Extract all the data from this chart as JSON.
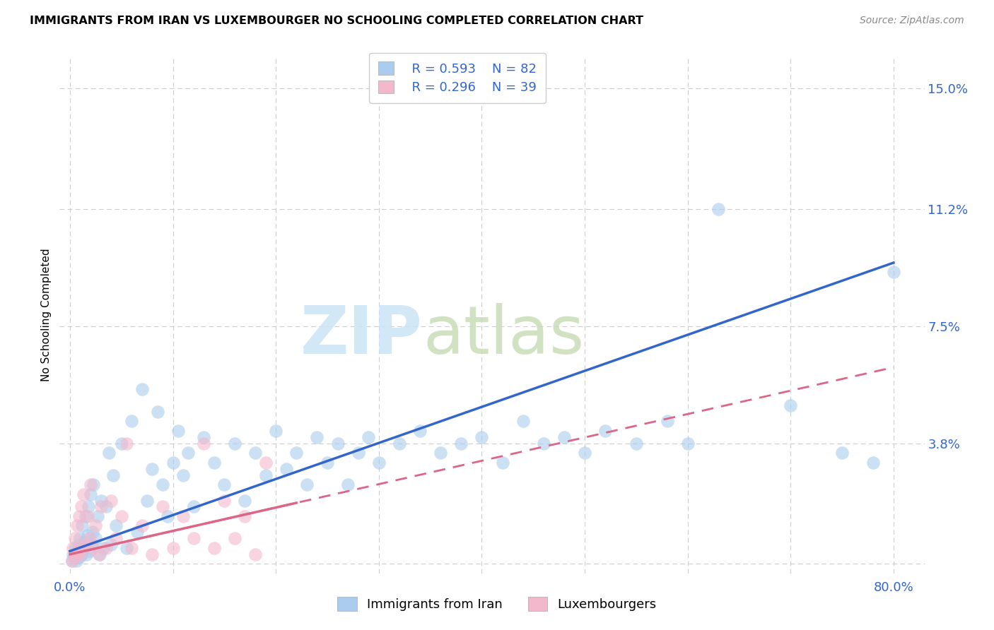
{
  "title": "IMMIGRANTS FROM IRAN VS LUXEMBOURGER NO SCHOOLING COMPLETED CORRELATION CHART",
  "source": "Source: ZipAtlas.com",
  "ylabel": "No Schooling Completed",
  "xlim": [
    -1.0,
    83.0
  ],
  "ylim": [
    -0.3,
    16.0
  ],
  "y_ticks_right": [
    0.0,
    3.8,
    7.5,
    11.2,
    15.0
  ],
  "y_tick_labels_right": [
    "",
    "3.8%",
    "7.5%",
    "11.2%",
    "15.0%"
  ],
  "x_ticks": [
    0.0,
    10.0,
    20.0,
    30.0,
    40.0,
    50.0,
    60.0,
    70.0,
    80.0
  ],
  "blue_color": "#aaccee",
  "pink_color": "#f4b8cc",
  "blue_line_color": "#3366cc",
  "pink_line_color": "#dd6688",
  "background_color": "#ffffff",
  "grid_color": "#cccccc",
  "blue_scatter": [
    [
      0.2,
      0.1
    ],
    [
      0.3,
      0.3
    ],
    [
      0.4,
      0.2
    ],
    [
      0.5,
      0.5
    ],
    [
      0.6,
      0.1
    ],
    [
      0.7,
      0.4
    ],
    [
      0.8,
      0.6
    ],
    [
      0.9,
      0.2
    ],
    [
      1.0,
      0.8
    ],
    [
      1.1,
      0.3
    ],
    [
      1.2,
      1.2
    ],
    [
      1.3,
      0.5
    ],
    [
      1.4,
      0.7
    ],
    [
      1.5,
      1.5
    ],
    [
      1.6,
      0.3
    ],
    [
      1.7,
      0.9
    ],
    [
      1.8,
      1.8
    ],
    [
      1.9,
      0.4
    ],
    [
      2.0,
      2.2
    ],
    [
      2.1,
      0.6
    ],
    [
      2.2,
      1.0
    ],
    [
      2.3,
      2.5
    ],
    [
      2.5,
      0.8
    ],
    [
      2.7,
      1.5
    ],
    [
      2.9,
      0.3
    ],
    [
      3.0,
      2.0
    ],
    [
      3.2,
      0.5
    ],
    [
      3.5,
      1.8
    ],
    [
      3.8,
      3.5
    ],
    [
      4.0,
      0.6
    ],
    [
      4.2,
      2.8
    ],
    [
      4.5,
      1.2
    ],
    [
      5.0,
      3.8
    ],
    [
      5.5,
      0.5
    ],
    [
      6.0,
      4.5
    ],
    [
      6.5,
      1.0
    ],
    [
      7.0,
      5.5
    ],
    [
      7.5,
      2.0
    ],
    [
      8.0,
      3.0
    ],
    [
      8.5,
      4.8
    ],
    [
      9.0,
      2.5
    ],
    [
      9.5,
      1.5
    ],
    [
      10.0,
      3.2
    ],
    [
      10.5,
      4.2
    ],
    [
      11.0,
      2.8
    ],
    [
      11.5,
      3.5
    ],
    [
      12.0,
      1.8
    ],
    [
      13.0,
      4.0
    ],
    [
      14.0,
      3.2
    ],
    [
      15.0,
      2.5
    ],
    [
      16.0,
      3.8
    ],
    [
      17.0,
      2.0
    ],
    [
      18.0,
      3.5
    ],
    [
      19.0,
      2.8
    ],
    [
      20.0,
      4.2
    ],
    [
      21.0,
      3.0
    ],
    [
      22.0,
      3.5
    ],
    [
      23.0,
      2.5
    ],
    [
      24.0,
      4.0
    ],
    [
      25.0,
      3.2
    ],
    [
      26.0,
      3.8
    ],
    [
      27.0,
      2.5
    ],
    [
      28.0,
      3.5
    ],
    [
      29.0,
      4.0
    ],
    [
      30.0,
      3.2
    ],
    [
      32.0,
      3.8
    ],
    [
      34.0,
      4.2
    ],
    [
      36.0,
      3.5
    ],
    [
      38.0,
      3.8
    ],
    [
      40.0,
      4.0
    ],
    [
      42.0,
      3.2
    ],
    [
      44.0,
      4.5
    ],
    [
      46.0,
      3.8
    ],
    [
      48.0,
      4.0
    ],
    [
      50.0,
      3.5
    ],
    [
      52.0,
      4.2
    ],
    [
      55.0,
      3.8
    ],
    [
      58.0,
      4.5
    ],
    [
      60.0,
      3.8
    ],
    [
      63.0,
      11.2
    ],
    [
      70.0,
      5.0
    ],
    [
      75.0,
      3.5
    ],
    [
      78.0,
      3.2
    ],
    [
      80.0,
      9.2
    ]
  ],
  "pink_scatter": [
    [
      0.2,
      0.1
    ],
    [
      0.3,
      0.5
    ],
    [
      0.4,
      0.2
    ],
    [
      0.5,
      0.8
    ],
    [
      0.6,
      0.3
    ],
    [
      0.7,
      1.2
    ],
    [
      0.8,
      0.4
    ],
    [
      0.9,
      1.5
    ],
    [
      1.0,
      0.3
    ],
    [
      1.1,
      1.8
    ],
    [
      1.2,
      0.5
    ],
    [
      1.3,
      2.2
    ],
    [
      1.5,
      0.6
    ],
    [
      1.7,
      1.5
    ],
    [
      1.9,
      0.8
    ],
    [
      2.0,
      2.5
    ],
    [
      2.2,
      0.5
    ],
    [
      2.5,
      1.2
    ],
    [
      2.8,
      0.3
    ],
    [
      3.0,
      1.8
    ],
    [
      3.5,
      0.5
    ],
    [
      4.0,
      2.0
    ],
    [
      4.5,
      0.8
    ],
    [
      5.0,
      1.5
    ],
    [
      5.5,
      3.8
    ],
    [
      6.0,
      0.5
    ],
    [
      7.0,
      1.2
    ],
    [
      8.0,
      0.3
    ],
    [
      9.0,
      1.8
    ],
    [
      10.0,
      0.5
    ],
    [
      11.0,
      1.5
    ],
    [
      12.0,
      0.8
    ],
    [
      13.0,
      3.8
    ],
    [
      14.0,
      0.5
    ],
    [
      15.0,
      2.0
    ],
    [
      16.0,
      0.8
    ],
    [
      17.0,
      1.5
    ],
    [
      18.0,
      0.3
    ],
    [
      19.0,
      3.2
    ]
  ],
  "watermark_zip": "ZIP",
  "watermark_atlas": "atlas"
}
